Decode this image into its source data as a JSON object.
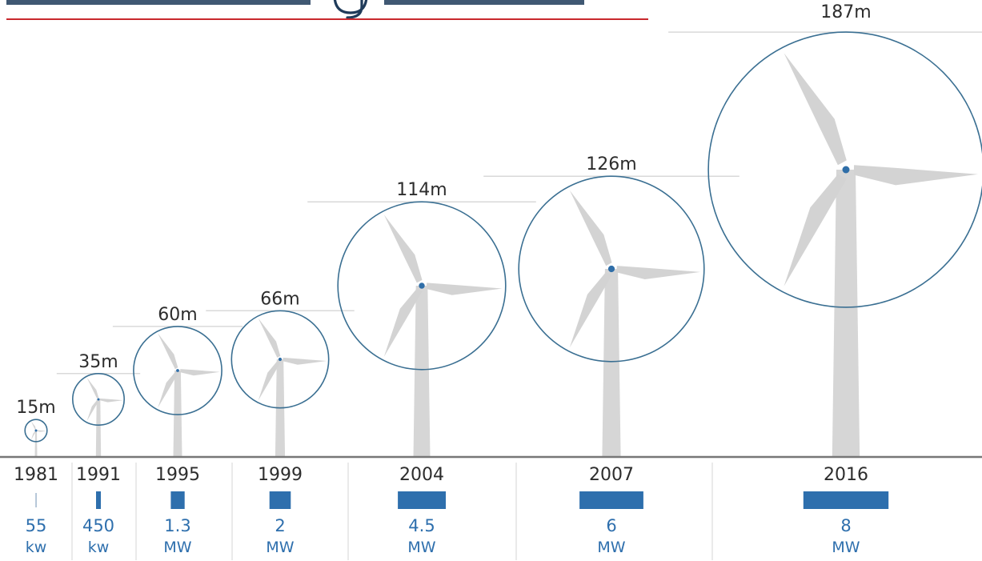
{
  "colors": {
    "rotor_stroke": "#3a6f92",
    "hub": "#2f6ea8",
    "blade": "#d3d3d3",
    "tower": "#d6d6d6",
    "guide_line": "#d9d9d9",
    "ground": "#777777",
    "separator": "#e3e3e3",
    "title_rule": "#c8282d",
    "title_text": "#1f3b5a",
    "capacity_bar": "#2e6fad",
    "capacity_text": "#2e6fad",
    "label_text": "#2d2d2d"
  },
  "turbines": [
    {
      "year": "1981",
      "diameter_m": 15,
      "diameter_label": "15m",
      "capacity_mw": 0.055,
      "capacity_value": "55",
      "capacity_unit": "kw"
    },
    {
      "year": "1991",
      "diameter_m": 35,
      "diameter_label": "35m",
      "capacity_mw": 0.45,
      "capacity_value": "450",
      "capacity_unit": "kw"
    },
    {
      "year": "1995",
      "diameter_m": 60,
      "diameter_label": "60m",
      "capacity_mw": 1.3,
      "capacity_value": "1.3",
      "capacity_unit": "MW"
    },
    {
      "year": "1999",
      "diameter_m": 66,
      "diameter_label": "66m",
      "capacity_mw": 2,
      "capacity_value": "2",
      "capacity_unit": "MW"
    },
    {
      "year": "2004",
      "diameter_m": 114,
      "diameter_label": "114m",
      "capacity_mw": 4.5,
      "capacity_value": "4.5",
      "capacity_unit": "MW"
    },
    {
      "year": "2007",
      "diameter_m": 126,
      "diameter_label": "126m",
      "capacity_mw": 6,
      "capacity_value": "6",
      "capacity_unit": "MW"
    },
    {
      "year": "2016",
      "diameter_m": 187,
      "diameter_label": "187m",
      "capacity_mw": 8,
      "capacity_value": "8",
      "capacity_unit": "MW"
    }
  ]
}
